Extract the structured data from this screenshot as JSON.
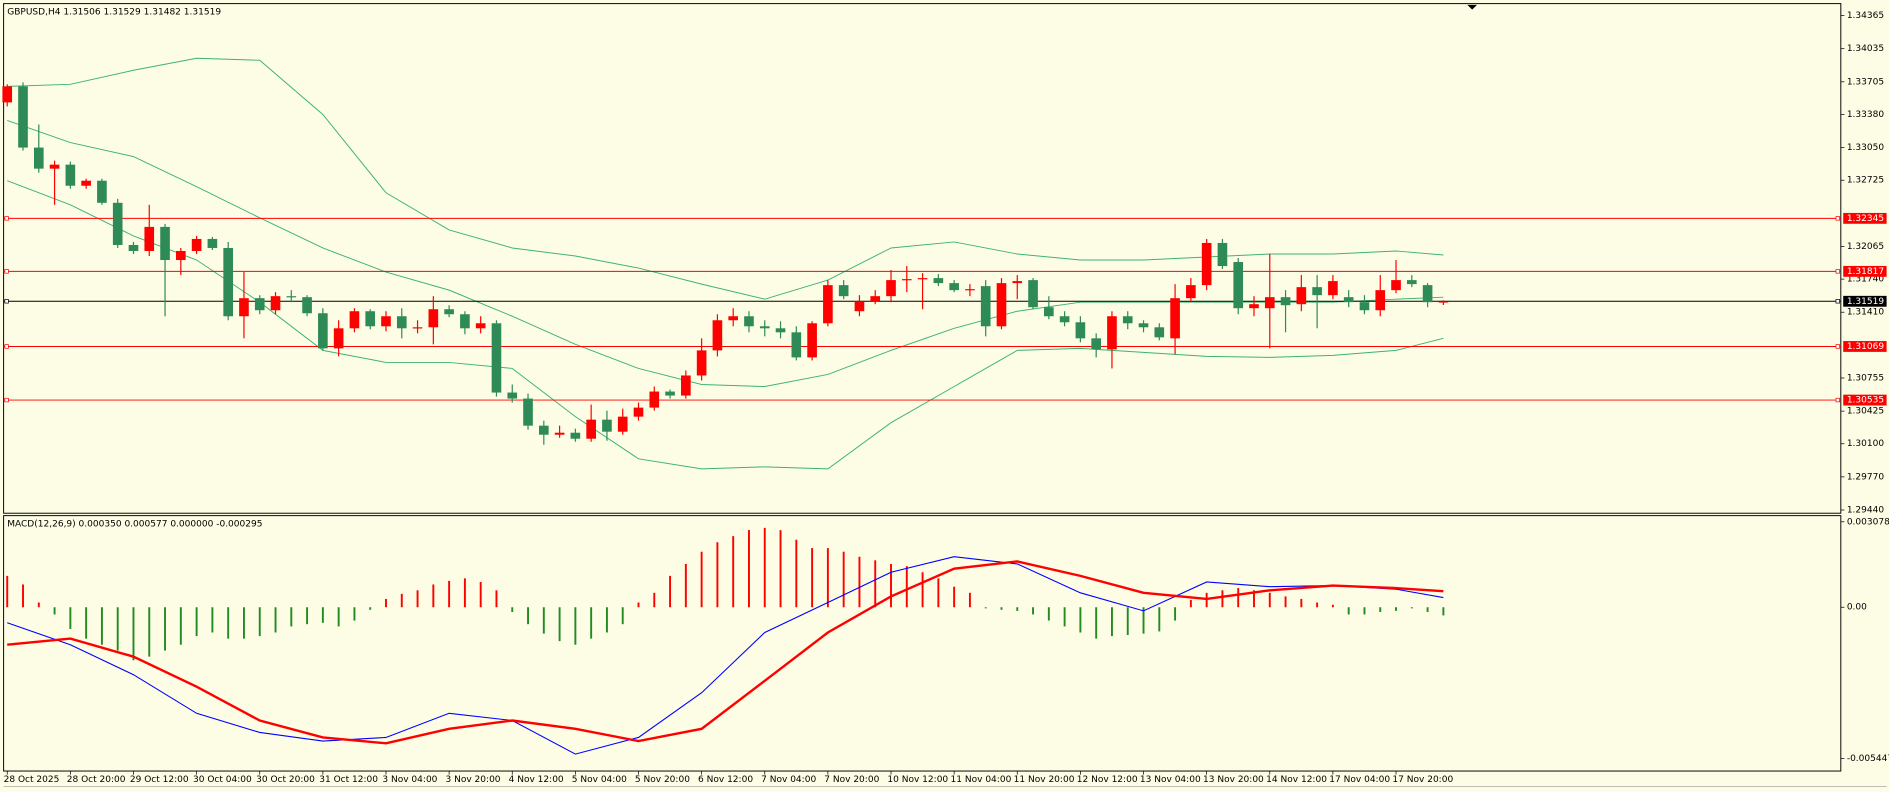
{
  "chart_data": [
    {
      "type": "candlestick",
      "title": "GBPUSD,H4 1.31506 1.31529 1.31482 1.31519",
      "categories": [
        "28 Oct 2025",
        null,
        null,
        null,
        "28 Oct 20:00",
        null,
        null,
        null,
        "29 Oct 12:00",
        null,
        null,
        null,
        "30 Oct 04:00",
        null,
        null,
        null,
        "30 Oct 20:00",
        null,
        null,
        null,
        "31 Oct 12:00",
        null,
        null,
        null,
        "3 Nov 04:00",
        null,
        null,
        null,
        "3 Nov 20:00",
        null,
        null,
        null,
        "4 Nov 12:00",
        null,
        null,
        null,
        "5 Nov 04:00",
        null,
        null,
        null,
        "5 Nov 20:00",
        null,
        null,
        null,
        "6 Nov 12:00",
        null,
        null,
        null,
        "7 Nov 04:00",
        null,
        null,
        null,
        "7 Nov 20:00",
        null,
        null,
        null,
        "10 Nov 12:00",
        null,
        null,
        null,
        "11 Nov 04:00",
        null,
        null,
        null,
        "11 Nov 20:00",
        null,
        null,
        null,
        "12 Nov 12:00",
        null,
        null,
        null,
        "13 Nov 04:00",
        null,
        null,
        null,
        "13 Nov 20:00",
        null,
        null,
        null,
        "14 Nov 12:00",
        null,
        null,
        null,
        "17 Nov 04:00",
        null,
        null,
        null,
        "17 Nov 20:00",
        null,
        null,
        null
      ],
      "open": [
        1.335,
        1.3366,
        1.3305,
        1.3284,
        1.3288,
        1.3267,
        1.3272,
        1.325,
        1.3208,
        1.3202,
        1.3226,
        1.3193,
        1.3202,
        1.3214,
        1.3205,
        1.3137,
        1.3155,
        1.3143,
        1.3157,
        1.3156,
        1.314,
        1.3105,
        1.3125,
        1.3142,
        1.3127,
        1.3137,
        1.3125,
        1.3126,
        1.3144,
        1.3139,
        1.3125,
        1.313,
        1.3061,
        1.3055,
        1.3028,
        1.3019,
        1.3021,
        1.3015,
        1.3034,
        1.3022,
        1.3037,
        1.3046,
        1.3062,
        1.3058,
        1.3078,
        1.3103,
        1.3133,
        1.3137,
        1.3127,
        1.3125,
        1.3121,
        1.3096,
        1.313,
        1.3168,
        1.3142,
        1.3152,
        1.3157,
        1.3173,
        1.3174,
        1.3175,
        1.317,
        1.3163,
        1.3167,
        1.3127,
        1.317,
        1.3173,
        1.3146,
        1.3137,
        1.3131,
        1.3115,
        1.3104,
        1.3137,
        1.313,
        1.3126,
        1.3115,
        1.3155,
        1.3168,
        1.321,
        1.3191,
        1.3145,
        1.3145,
        1.3156,
        1.3149,
        1.3166,
        1.3158,
        1.3156,
        1.3151,
        1.3143,
        1.3163,
        1.3173,
        1.3168,
        1.31506
      ],
      "high": [
        1.3368,
        1.337,
        1.3328,
        1.3292,
        1.3291,
        1.3274,
        1.3274,
        1.3254,
        1.3211,
        1.3248,
        1.3229,
        1.3205,
        1.3217,
        1.3216,
        1.3211,
        1.3181,
        1.3158,
        1.3161,
        1.3163,
        1.3158,
        1.3145,
        1.3133,
        1.3145,
        1.3144,
        1.3142,
        1.3145,
        1.3133,
        1.3157,
        1.3148,
        1.3142,
        1.3137,
        1.3133,
        1.3069,
        1.306,
        1.3033,
        1.3028,
        1.3025,
        1.3049,
        1.3043,
        1.3045,
        1.3051,
        1.3067,
        1.3064,
        1.3083,
        1.3115,
        1.3139,
        1.3145,
        1.3142,
        1.3133,
        1.3132,
        1.3127,
        1.3132,
        1.3173,
        1.3173,
        1.3158,
        1.3163,
        1.3183,
        1.3187,
        1.318,
        1.3179,
        1.3173,
        1.3169,
        1.3173,
        1.3175,
        1.3178,
        1.3175,
        1.3157,
        1.3142,
        1.3137,
        1.312,
        1.3142,
        1.3142,
        1.3133,
        1.313,
        1.3169,
        1.3175,
        1.3214,
        1.3214,
        1.3195,
        1.3157,
        1.3199,
        1.3163,
        1.3178,
        1.3178,
        1.3178,
        1.3163,
        1.3158,
        1.3178,
        1.3193,
        1.3178,
        1.317,
        1.31529
      ],
      "low": [
        1.3346,
        1.3302,
        1.328,
        1.3248,
        1.3264,
        1.3264,
        1.3248,
        1.3205,
        1.3199,
        1.3197,
        1.3137,
        1.3178,
        1.3199,
        1.3203,
        1.3133,
        1.3115,
        1.3139,
        1.3139,
        1.3151,
        1.3137,
        1.3103,
        1.3097,
        1.3121,
        1.3124,
        1.3122,
        1.3115,
        1.312,
        1.3109,
        1.3136,
        1.3119,
        1.312,
        1.3057,
        1.3051,
        1.3024,
        1.3009,
        1.3016,
        1.3012,
        1.3012,
        1.3013,
        1.3019,
        1.3033,
        1.3043,
        1.3055,
        1.3055,
        1.3073,
        1.3097,
        1.3127,
        1.3121,
        1.3117,
        1.3115,
        1.3093,
        1.3093,
        1.3127,
        1.3154,
        1.3137,
        1.3149,
        1.3151,
        1.3161,
        1.3144,
        1.3167,
        1.3161,
        1.3157,
        1.3117,
        1.3124,
        1.3154,
        1.3144,
        1.3134,
        1.3127,
        1.3111,
        1.3096,
        1.3085,
        1.3124,
        1.3121,
        1.3113,
        1.3099,
        1.3151,
        1.3163,
        1.3184,
        1.3139,
        1.3137,
        1.3105,
        1.3121,
        1.3142,
        1.3125,
        1.3154,
        1.3146,
        1.3139,
        1.3137,
        1.316,
        1.3166,
        1.3146,
        1.31482
      ],
      "close": [
        1.3366,
        1.3305,
        1.3284,
        1.3288,
        1.3267,
        1.3272,
        1.325,
        1.3208,
        1.3202,
        1.3226,
        1.3193,
        1.3202,
        1.3214,
        1.3205,
        1.3137,
        1.3155,
        1.3143,
        1.3157,
        1.3156,
        1.314,
        1.3105,
        1.3125,
        1.3142,
        1.3127,
        1.3137,
        1.3125,
        1.3126,
        1.3144,
        1.3139,
        1.3125,
        1.313,
        1.3061,
        1.3055,
        1.3028,
        1.3019,
        1.3021,
        1.3015,
        1.3034,
        1.3022,
        1.3037,
        1.3046,
        1.3062,
        1.3058,
        1.3078,
        1.3103,
        1.3133,
        1.3137,
        1.3127,
        1.3125,
        1.3121,
        1.3096,
        1.313,
        1.3168,
        1.3157,
        1.3152,
        1.3157,
        1.3173,
        1.3174,
        1.3175,
        1.317,
        1.3163,
        1.3164,
        1.3127,
        1.317,
        1.3172,
        1.3146,
        1.3137,
        1.3131,
        1.3115,
        1.3104,
        1.3137,
        1.313,
        1.3126,
        1.3116,
        1.3155,
        1.3168,
        1.321,
        1.3187,
        1.3145,
        1.3149,
        1.3156,
        1.3148,
        1.3166,
        1.3158,
        1.3172,
        1.3151,
        1.3143,
        1.3163,
        1.3173,
        1.3169,
        1.3151,
        1.31519
      ],
      "up_color": "#ff0000",
      "down_color": "#2e8b57",
      "bands": {
        "color": "#3cb371",
        "x": [
          0,
          4,
          8,
          12,
          16,
          20,
          24,
          28,
          32,
          36,
          40,
          44,
          48,
          52,
          56,
          60,
          64,
          68,
          72,
          76,
          80,
          84,
          88,
          91
        ],
        "upper": [
          1.3366,
          1.3368,
          1.3382,
          1.3394,
          1.3392,
          1.3338,
          1.326,
          1.3223,
          1.3205,
          1.3197,
          1.3185,
          1.3169,
          1.3154,
          1.3173,
          1.3205,
          1.3211,
          1.3199,
          1.3193,
          1.3193,
          1.3196,
          1.3199,
          1.3199,
          1.3202,
          1.3198
        ],
        "middle": [
          1.3332,
          1.331,
          1.3296,
          1.3266,
          1.3235,
          1.3205,
          1.3181,
          1.3163,
          1.3137,
          1.3109,
          1.3085,
          1.3069,
          1.3067,
          1.3079,
          1.3103,
          1.3125,
          1.3142,
          1.3151,
          1.3151,
          1.3151,
          1.3151,
          1.3151,
          1.3154,
          1.3156
        ],
        "lower": [
          1.3272,
          1.3248,
          1.3217,
          1.3193,
          1.3151,
          1.3103,
          1.3091,
          1.3091,
          1.3085,
          1.3037,
          1.2995,
          1.2985,
          1.2987,
          1.2985,
          1.3031,
          1.3067,
          1.3103,
          1.3105,
          1.3101,
          1.3097,
          1.3096,
          1.3098,
          1.3103,
          1.3115
        ]
      },
      "levels": [
        {
          "value": 1.32345,
          "color": "#ff0000"
        },
        {
          "value": 1.31817,
          "color": "#ff0000"
        },
        {
          "value": 1.31069,
          "color": "#ff0000"
        },
        {
          "value": 1.30535,
          "color": "#ff0000"
        }
      ],
      "last_price": {
        "value": 1.31519,
        "color": "#000000"
      },
      "ylim": [
        1.2942,
        1.3446
      ],
      "yticks": [
        1.34365,
        1.34035,
        1.33705,
        {
          "value": 1.3338,
          "label": "1.33380"
        },
        {
          "value": 1.3305,
          "label": "1.33050"
        },
        1.32725,
        1.32065,
        {
          "value": 1.3174,
          "label": "1.31740"
        },
        {
          "value": 1.3141,
          "label": "1.31410"
        },
        1.30755,
        1.30425,
        {
          "value": 1.301,
          "label": "1.30100"
        },
        {
          "value": 1.2977,
          "label": "1.29770"
        },
        {
          "value": 1.2944,
          "label": "1.29440"
        }
      ]
    },
    {
      "type": "macd",
      "title": "MACD(12,26,9) 0.000350 0.000577 0.000000 -0.000295",
      "histogram": [
        0.00113,
        0.00082,
        0.00017,
        -0.00026,
        -0.00078,
        -0.00113,
        -0.00135,
        -0.00156,
        -0.00191,
        -0.00178,
        -0.00156,
        -0.00135,
        -0.00104,
        -0.00091,
        -0.00113,
        -0.00113,
        -0.00104,
        -0.00091,
        -0.00069,
        -0.00061,
        -0.00056,
        -0.00069,
        -0.00048,
        -9e-05,
        0.0003,
        0.00048,
        0.00061,
        0.00082,
        0.00095,
        0.00104,
        0.00091,
        0.00061,
        -0.00017,
        -0.00061,
        -0.00095,
        -0.00122,
        -0.00135,
        -0.00113,
        -0.00091,
        -0.00061,
        0.00017,
        0.00052,
        0.00113,
        0.00156,
        0.002,
        0.00234,
        0.00256,
        0.00278,
        0.00286,
        0.00278,
        0.00243,
        0.00213,
        0.00213,
        0.002,
        0.00182,
        0.00169,
        0.00156,
        0.00148,
        0.00126,
        0.00104,
        0.00074,
        0.00052,
        -4e-05,
        -9e-05,
        -0.00013,
        -0.00026,
        -0.00048,
        -0.00069,
        -0.00091,
        -0.00113,
        -0.00104,
        -0.001,
        -0.00095,
        -0.00087,
        -0.00048,
        0.00026,
        0.00052,
        0.00061,
        0.00069,
        0.00061,
        0.00052,
        0.00039,
        0.0003,
        0.00017,
        9e-05,
        -0.00026,
        -0.00026,
        -0.00017,
        -0.00013,
        -4e-05,
        -0.00017,
        -0.000295
      ],
      "positive_color": "#ff0000",
      "negative_color": "#228b22",
      "x": [
        0,
        4,
        8,
        12,
        16,
        20,
        24,
        28,
        32,
        36,
        40,
        44,
        48,
        52,
        56,
        60,
        64,
        68,
        72,
        76,
        80,
        84,
        88,
        91
      ],
      "main": {
        "color": "#0000ff",
        "values": [
          -0.00056,
          -0.00135,
          -0.00243,
          -0.00382,
          -0.00451,
          -0.00482,
          -0.00469,
          -0.00382,
          -0.00408,
          -0.00529,
          -0.00469,
          -0.00308,
          -0.00091,
          0.00017,
          0.00126,
          0.00182,
          0.00156,
          0.00052,
          -0.00013,
          0.00091,
          0.00074,
          0.00078,
          0.00065,
          0.00035
        ]
      },
      "signal": {
        "color": "#ff0000",
        "values": [
          -0.00135,
          -0.00113,
          -0.00178,
          -0.00286,
          -0.00408,
          -0.00469,
          -0.0049,
          -0.00438,
          -0.00408,
          -0.00438,
          -0.00482,
          -0.00438,
          -0.00265,
          -0.00091,
          0.00039,
          0.00139,
          0.00165,
          0.00113,
          0.00052,
          0.0003,
          0.00061,
          0.00078,
          0.00069,
          0.000577
        ]
      },
      "ylim": [
        -0.0059,
        0.0033
      ],
      "yticks": [
        0.003078,
        {
          "value": 0,
          "label": "0.00"
        },
        -0.005447
      ]
    }
  ]
}
